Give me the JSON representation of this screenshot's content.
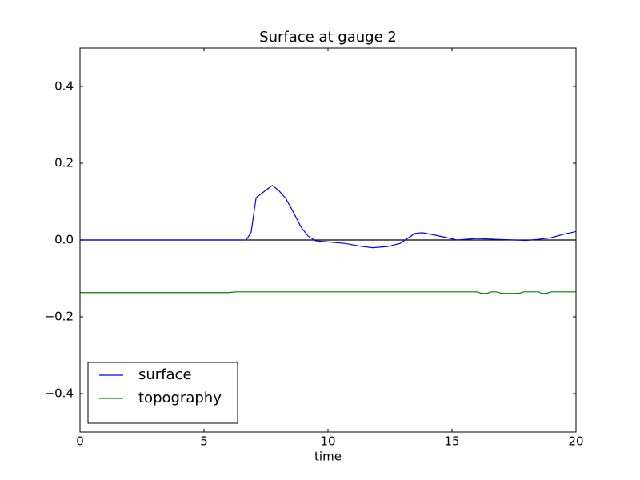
{
  "chart_data": {
    "type": "line",
    "title": "Surface at gauge 2",
    "x_label": "time",
    "xlim": [
      0,
      20
    ],
    "xticks": [
      0,
      5,
      10,
      15,
      20
    ],
    "ylim": [
      -0.5,
      0.5
    ],
    "yticks": [
      {
        "value": -0.4,
        "label": "−0.4"
      },
      {
        "value": -0.2,
        "label": "−0.2"
      },
      {
        "value": 0,
        "label": "0.0"
      },
      0.2,
      0.4
    ],
    "reference_line": 0,
    "reference_color": "#000000",
    "legend": "lower left",
    "series": [
      {
        "name": "surface",
        "color": "#0000ff",
        "x": [
          0,
          6.7,
          6.9,
          7.1,
          7.3,
          7.5,
          7.75,
          8.0,
          8.3,
          8.6,
          8.9,
          9.2,
          9.5,
          10,
          10.7,
          11.3,
          11.8,
          12.4,
          12.9,
          13.2,
          13.5,
          13.8,
          14.3,
          14.8,
          15.2,
          16,
          16.7,
          17.5,
          18,
          18.5,
          19,
          19.5,
          20
        ],
        "values": [
          0,
          0,
          0.02,
          0.11,
          0.12,
          0.13,
          0.142,
          0.13,
          0.108,
          0.073,
          0.035,
          0.01,
          -0.002,
          -0.005,
          -0.009,
          -0.016,
          -0.02,
          -0.017,
          -0.009,
          0.004,
          0.017,
          0.019,
          0.013,
          0.006,
          0,
          0.004,
          0.002,
          0,
          -0.001,
          0.002,
          0.006,
          0.015,
          0.022
        ]
      },
      {
        "name": "topography",
        "color": "#008000",
        "x": [
          0,
          6.0,
          6.3,
          16.0,
          16.2,
          16.4,
          16.6,
          16.8,
          17.0,
          17.7,
          17.9,
          18.5,
          18.6,
          18.8,
          19.0,
          20
        ],
        "values": [
          -0.137,
          -0.137,
          -0.135,
          -0.135,
          -0.139,
          -0.139,
          -0.135,
          -0.135,
          -0.139,
          -0.139,
          -0.135,
          -0.135,
          -0.139,
          -0.139,
          -0.135,
          -0.135
        ]
      }
    ]
  }
}
